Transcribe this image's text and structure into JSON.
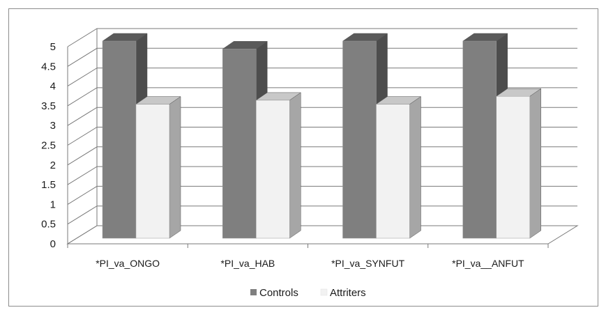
{
  "chart_data": {
    "type": "bar",
    "style": "3d-clustered-column",
    "categories": [
      "*PI_va_ONGO",
      "*PI_va_HAB",
      "*PI_va_SYNFUT",
      "*PI_va__ANFUT"
    ],
    "series": [
      {
        "name": "Controls",
        "values": [
          5.0,
          4.8,
          5.0,
          5.0
        ],
        "color": "#7f7f7f"
      },
      {
        "name": "Attriters",
        "values": [
          3.4,
          3.5,
          3.4,
          3.6
        ],
        "color": "#f2f2f2"
      }
    ],
    "y_ticks": [
      "0",
      "0.5",
      "1",
      "1.5",
      "2",
      "2.5",
      "3",
      "3.5",
      "4",
      "4.5",
      "5"
    ],
    "ylim": [
      0,
      5
    ],
    "grid": true,
    "legend_position": "bottom"
  }
}
